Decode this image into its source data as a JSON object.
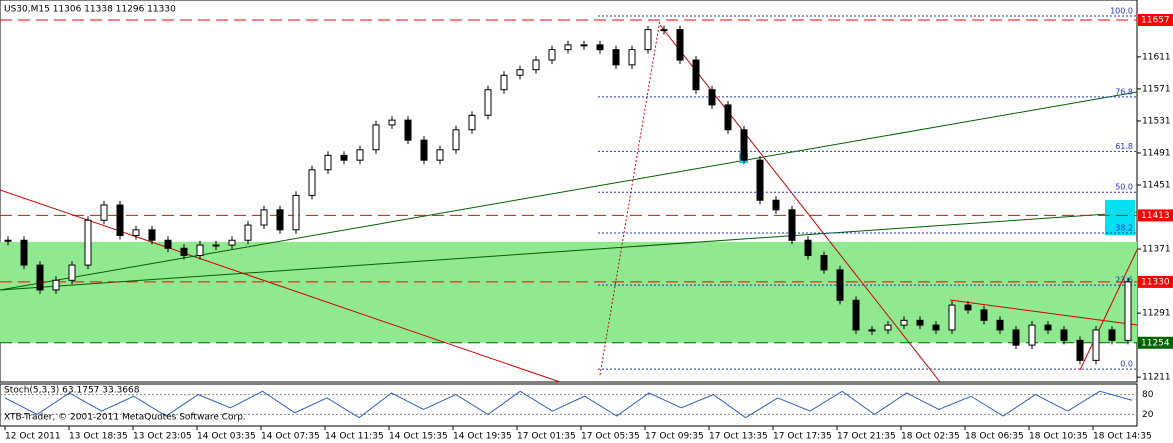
{
  "header": {
    "symbol_line": "US30,M15  11306 11338 11296 11330"
  },
  "footer": {
    "copyright": "XTB-Trader, © 2001-2011 MetaQuotes Software Corp."
  },
  "chart_data": [
    {
      "type": "candle",
      "x_tick_labels": [
        "12 Oct 2011",
        "13 Oct 18:35",
        "13 Oct 23:05",
        "14 Oct 03:35",
        "14 Oct 07:35",
        "14 Oct 11:35",
        "14 Oct 15:35",
        "14 Oct 19:35",
        "17 Oct 01:35",
        "17 Oct 05:35",
        "17 Oct 09:35",
        "17 Oct 13:35",
        "17 Oct 17:35",
        "17 Oct 21:35",
        "18 Oct 02:35",
        "18 Oct 06:35",
        "18 Oct 10:35",
        "18 Oct 14:35"
      ],
      "values": [
        11382,
        11351,
        11320,
        11332,
        11351,
        11407,
        11426,
        11388,
        11395,
        11382,
        11372,
        11363,
        11376,
        11376,
        11382,
        11401,
        11420,
        11395,
        11438,
        11470,
        11488,
        11482,
        11495,
        11526,
        11532,
        11507,
        11482,
        11495,
        11520,
        11538,
        11570,
        11588,
        11595,
        11607,
        11620,
        11626,
        11626,
        11620,
        11601,
        11620,
        11645,
        11645,
        11607,
        11570,
        11551,
        11520,
        11482,
        11432,
        11420,
        11382,
        11363,
        11345,
        11307,
        11270,
        11270,
        11276,
        11282,
        11276,
        11270,
        11301,
        11295,
        11282,
        11270,
        11251,
        11276,
        11270,
        11257,
        11232,
        11270,
        11257,
        11330
      ],
      "ylim": [
        11205,
        11682
      ],
      "yticks": [
        11211,
        11291,
        11371,
        11451,
        11491,
        11531,
        11571,
        11611
      ],
      "levels": [
        {
          "value": 11657,
          "color": "#ff0000"
        },
        {
          "value": 11413,
          "color": "#ff0000"
        },
        {
          "value": 11330,
          "color": "#ff0000"
        },
        {
          "value": 11254,
          "color": "#006400"
        }
      ],
      "fibo": [
        {
          "value": 11662,
          "label": "100.0"
        },
        {
          "value": 11561,
          "label": "76.8"
        },
        {
          "value": 11493,
          "label": "61.8"
        },
        {
          "value": 11442,
          "label": "50.0"
        },
        {
          "value": 11391,
          "label": "38.2"
        },
        {
          "value": 11326,
          "label": "23.6"
        },
        {
          "value": 11221,
          "label": "0.0"
        }
      ],
      "zone": [
        11254,
        11380
      ],
      "zone_color": "#90e890"
    },
    {
      "type": "line",
      "title": "Stoch(5,3,3) 63.1757 33.3668",
      "values": [
        70,
        20,
        85,
        30,
        75,
        15,
        80,
        40,
        90,
        25,
        70,
        10,
        85,
        35,
        80,
        20,
        90,
        30,
        75,
        15,
        85,
        40,
        80,
        10,
        70,
        30,
        90,
        20,
        85,
        35,
        75,
        15,
        80,
        30,
        90,
        63
      ],
      "ylim": [
        0,
        100
      ],
      "yticks": [
        20,
        80
      ],
      "color": "#3060c0"
    }
  ]
}
